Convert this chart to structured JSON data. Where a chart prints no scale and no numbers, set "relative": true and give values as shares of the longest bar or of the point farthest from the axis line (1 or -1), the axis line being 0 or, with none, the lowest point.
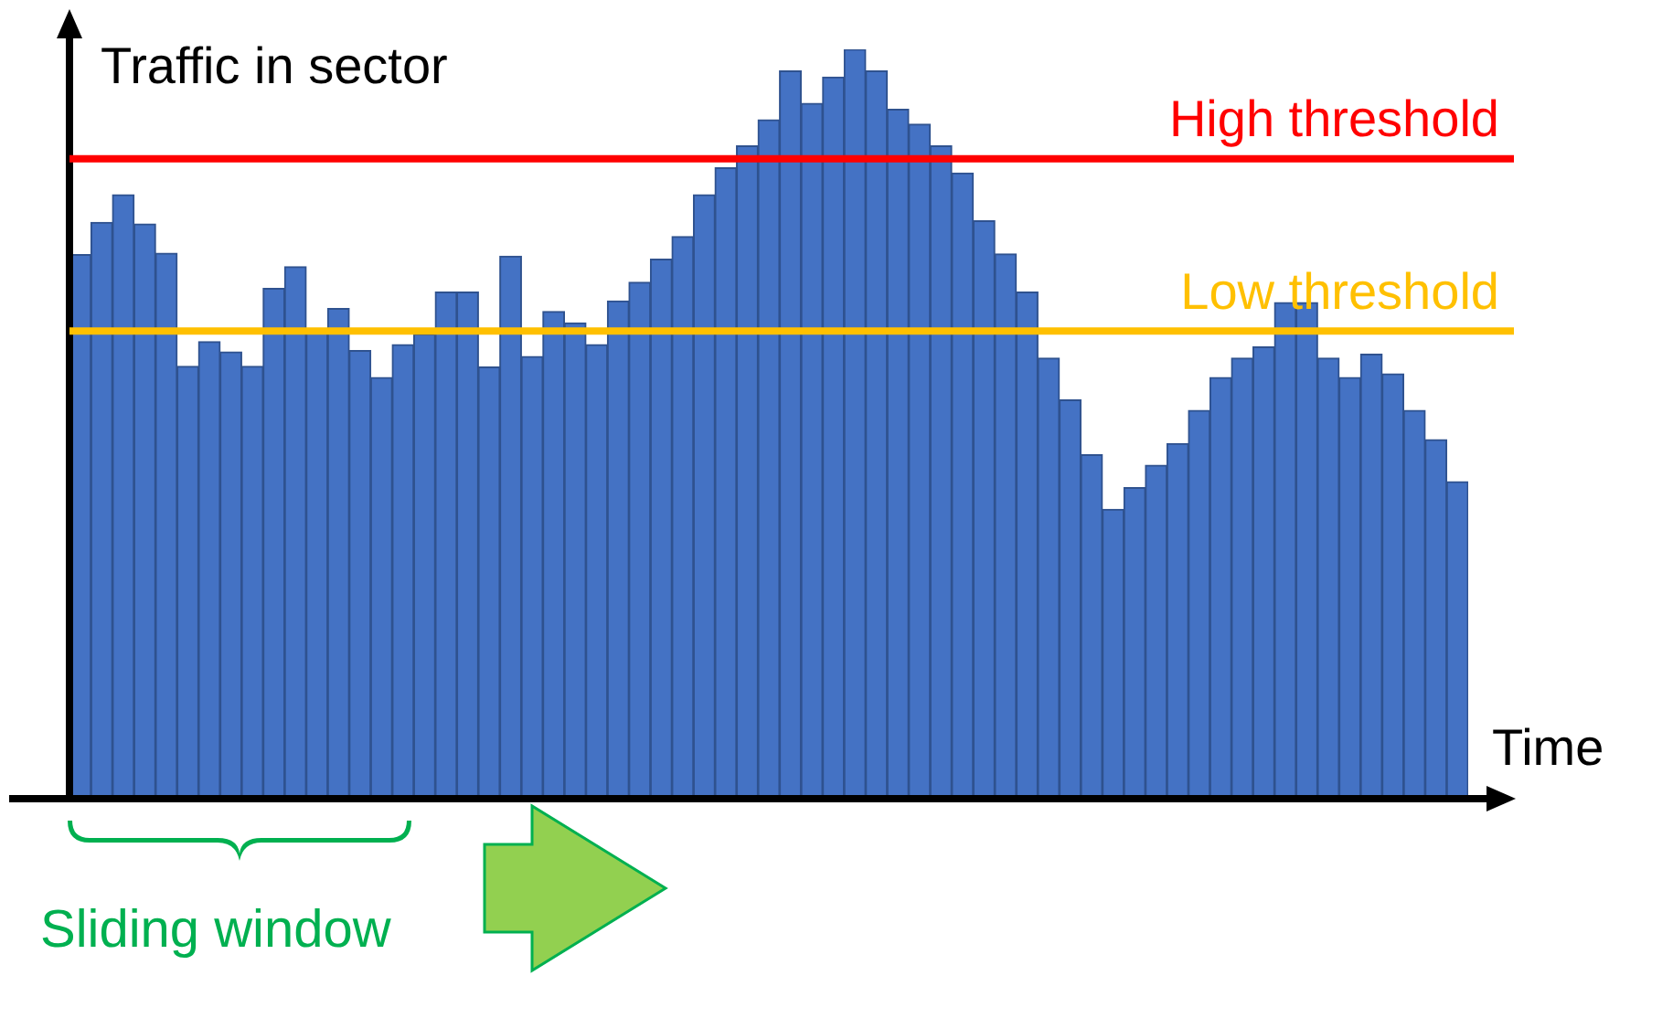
{
  "chart_data": {
    "type": "bar",
    "relative": true,
    "xlabel": "Time",
    "ylabel": "Traffic in sector",
    "categories": [
      null,
      null,
      null,
      null,
      null,
      null,
      null,
      null,
      null,
      null,
      null,
      null,
      null,
      null,
      null,
      null,
      null,
      null,
      null,
      null,
      null,
      null,
      null,
      null,
      null,
      null,
      null,
      null,
      null,
      null,
      null,
      null,
      null,
      null,
      null,
      null,
      null,
      null,
      null,
      null,
      null,
      null,
      null,
      null,
      null,
      null,
      null,
      null,
      null,
      null,
      null,
      null,
      null,
      null,
      null,
      null,
      null,
      null,
      null,
      null,
      null,
      null,
      null,
      null,
      null
    ],
    "series": [
      {
        "color": "#4472c4",
        "values": [
          0.726,
          0.769,
          0.806,
          0.767,
          0.728,
          0.577,
          0.61,
          0.596,
          0.577,
          0.681,
          0.71,
          0.624,
          0.654,
          0.598,
          0.562,
          0.606,
          0.62,
          0.676,
          0.676,
          0.576,
          0.724,
          0.59,
          0.65,
          0.635,
          0.606,
          0.664,
          0.689,
          0.72,
          0.75,
          0.806,
          0.842,
          0.871,
          0.906,
          0.971,
          0.928,
          0.963,
          1,
          0.971,
          0.92,
          0.9,
          0.871,
          0.835,
          0.771,
          0.727,
          0.676,
          0.588,
          0.532,
          0.459,
          0.386,
          0.415,
          0.445,
          0.474,
          0.518,
          0.562,
          0.588,
          0.603,
          0.662,
          0.662,
          0.588,
          0.562,
          0.593,
          0.567,
          0.518,
          0.479,
          0.423
        ]
      }
    ],
    "ref_lines": [
      {
        "axis": "y",
        "value": 0.854,
        "label": "High threshold",
        "color": "#ff0000"
      },
      {
        "axis": "y",
        "value": 0.624,
        "label": "Low threshold",
        "color": "#ffc000"
      }
    ],
    "annotations": [
      "Sliding window"
    ],
    "legend": false
  }
}
